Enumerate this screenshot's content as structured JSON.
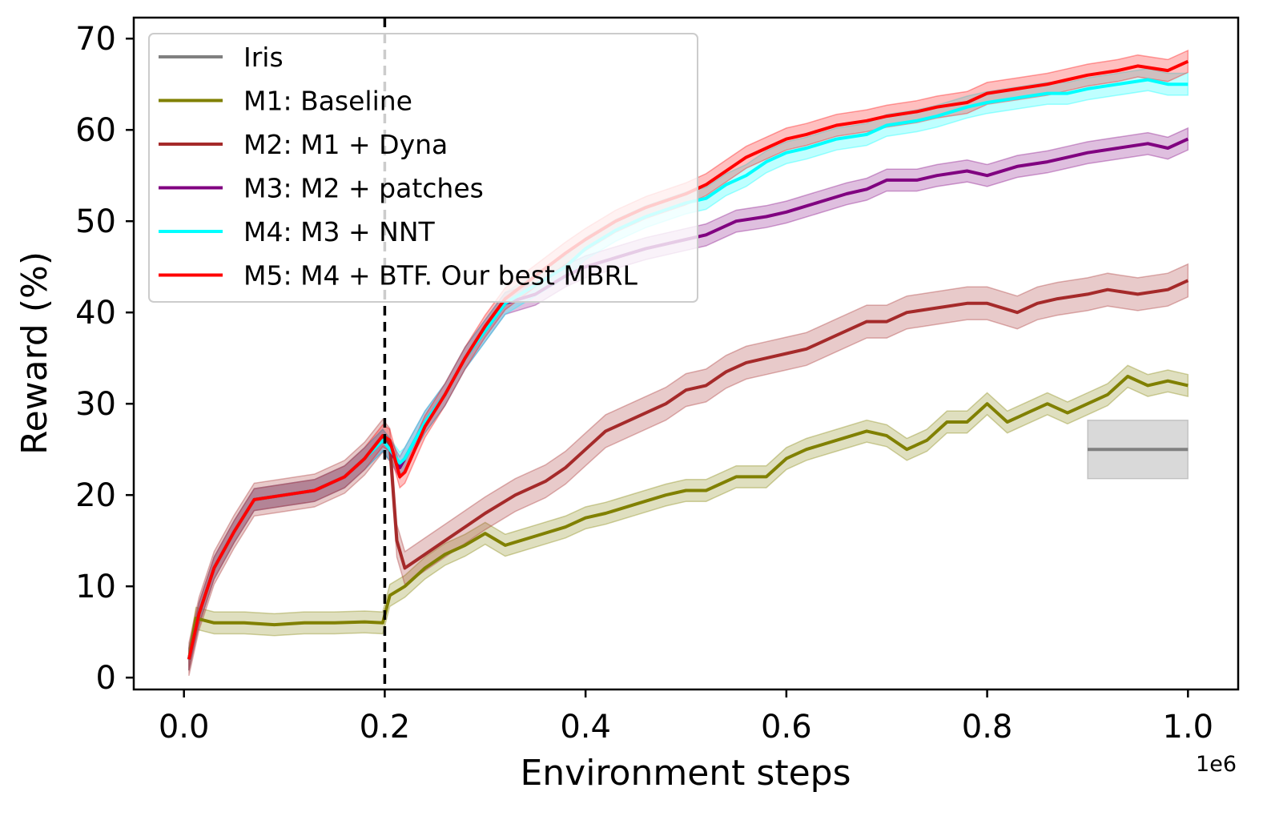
{
  "chart_data": {
    "type": "line",
    "xlabel": "Environment steps",
    "ylabel": "Reward (%)",
    "x_offset_label": "1e6",
    "xlim": [
      -0.05,
      1.05
    ],
    "ylim": [
      -1.3,
      72.3
    ],
    "x_ticks": [
      0.0,
      0.2,
      0.4,
      0.6,
      0.8,
      1.0
    ],
    "x_tick_labels": [
      "0.0",
      "0.2",
      "0.4",
      "0.6",
      "0.8",
      "1.0"
    ],
    "y_ticks": [
      0,
      10,
      20,
      30,
      40,
      50,
      60,
      70
    ],
    "y_tick_labels": [
      "0",
      "10",
      "20",
      "30",
      "40",
      "50",
      "60",
      "70"
    ],
    "vline": {
      "x": 0.2,
      "style": "dashed",
      "color": "#000000"
    },
    "grid": false,
    "legend": {
      "position": "top-left"
    },
    "series": [
      {
        "name": "Iris",
        "color": "#808080",
        "band": 3.2,
        "points": [
          [
            0.9,
            25.0
          ],
          [
            1.0,
            25.0
          ]
        ]
      },
      {
        "name": "M1: Baseline",
        "color": "#808000",
        "band": 1.2,
        "points": [
          [
            0.005,
            2.0
          ],
          [
            0.012,
            6.5
          ],
          [
            0.03,
            6.0
          ],
          [
            0.06,
            6.0
          ],
          [
            0.09,
            5.8
          ],
          [
            0.12,
            6.0
          ],
          [
            0.15,
            6.0
          ],
          [
            0.18,
            6.1
          ],
          [
            0.198,
            6.0
          ],
          [
            0.205,
            9.0
          ],
          [
            0.22,
            10.0
          ],
          [
            0.24,
            12.0
          ],
          [
            0.26,
            13.5
          ],
          [
            0.28,
            14.5
          ],
          [
            0.3,
            15.8
          ],
          [
            0.32,
            14.5
          ],
          [
            0.35,
            15.5
          ],
          [
            0.38,
            16.5
          ],
          [
            0.4,
            17.5
          ],
          [
            0.42,
            18.0
          ],
          [
            0.45,
            19.0
          ],
          [
            0.48,
            20.0
          ],
          [
            0.5,
            20.5
          ],
          [
            0.52,
            20.5
          ],
          [
            0.55,
            22.0
          ],
          [
            0.58,
            22.0
          ],
          [
            0.6,
            24.0
          ],
          [
            0.62,
            25.0
          ],
          [
            0.65,
            26.0
          ],
          [
            0.68,
            27.0
          ],
          [
            0.7,
            26.5
          ],
          [
            0.72,
            25.0
          ],
          [
            0.74,
            26.0
          ],
          [
            0.76,
            28.0
          ],
          [
            0.78,
            28.0
          ],
          [
            0.8,
            30.0
          ],
          [
            0.82,
            28.0
          ],
          [
            0.84,
            29.0
          ],
          [
            0.86,
            30.0
          ],
          [
            0.88,
            29.0
          ],
          [
            0.9,
            30.0
          ],
          [
            0.92,
            31.0
          ],
          [
            0.94,
            33.0
          ],
          [
            0.96,
            32.0
          ],
          [
            0.98,
            32.5
          ],
          [
            1.0,
            32.0
          ]
        ]
      },
      {
        "name": "M2: M1 + Dyna",
        "color": "#A52A2A",
        "band": 1.8,
        "points": [
          [
            0.005,
            2.0
          ],
          [
            0.015,
            7.0
          ],
          [
            0.03,
            12.0
          ],
          [
            0.05,
            16.0
          ],
          [
            0.07,
            19.5
          ],
          [
            0.1,
            20.0
          ],
          [
            0.13,
            20.5
          ],
          [
            0.16,
            22.0
          ],
          [
            0.18,
            24.0
          ],
          [
            0.198,
            26.5
          ],
          [
            0.205,
            25.5
          ],
          [
            0.212,
            15.0
          ],
          [
            0.22,
            12.0
          ],
          [
            0.24,
            13.5
          ],
          [
            0.26,
            15.0
          ],
          [
            0.28,
            16.5
          ],
          [
            0.3,
            18.0
          ],
          [
            0.33,
            20.0
          ],
          [
            0.36,
            21.5
          ],
          [
            0.38,
            23.0
          ],
          [
            0.4,
            25.0
          ],
          [
            0.42,
            27.0
          ],
          [
            0.45,
            28.5
          ],
          [
            0.48,
            30.0
          ],
          [
            0.5,
            31.5
          ],
          [
            0.52,
            32.0
          ],
          [
            0.54,
            33.5
          ],
          [
            0.56,
            34.5
          ],
          [
            0.58,
            35.0
          ],
          [
            0.6,
            35.5
          ],
          [
            0.62,
            36.0
          ],
          [
            0.65,
            37.5
          ],
          [
            0.68,
            39.0
          ],
          [
            0.7,
            39.0
          ],
          [
            0.72,
            40.0
          ],
          [
            0.75,
            40.5
          ],
          [
            0.78,
            41.0
          ],
          [
            0.8,
            41.0
          ],
          [
            0.83,
            40.0
          ],
          [
            0.85,
            41.0
          ],
          [
            0.87,
            41.5
          ],
          [
            0.9,
            42.0
          ],
          [
            0.92,
            42.5
          ],
          [
            0.95,
            42.0
          ],
          [
            0.98,
            42.5
          ],
          [
            1.0,
            43.5
          ]
        ]
      },
      {
        "name": "M3: M2 + patches",
        "color": "#800080",
        "band": 1.2,
        "points": [
          [
            0.005,
            2.0
          ],
          [
            0.015,
            7.0
          ],
          [
            0.03,
            12.0
          ],
          [
            0.05,
            16.0
          ],
          [
            0.07,
            19.5
          ],
          [
            0.1,
            20.0
          ],
          [
            0.13,
            20.5
          ],
          [
            0.16,
            22.0
          ],
          [
            0.18,
            24.0
          ],
          [
            0.198,
            26.0
          ],
          [
            0.205,
            25.0
          ],
          [
            0.215,
            23.0
          ],
          [
            0.22,
            24.0
          ],
          [
            0.24,
            28.0
          ],
          [
            0.26,
            31.0
          ],
          [
            0.28,
            35.0
          ],
          [
            0.3,
            38.0
          ],
          [
            0.32,
            41.0
          ],
          [
            0.35,
            42.0
          ],
          [
            0.38,
            44.0
          ],
          [
            0.4,
            45.0
          ],
          [
            0.43,
            46.0
          ],
          [
            0.46,
            47.0
          ],
          [
            0.5,
            48.0
          ],
          [
            0.52,
            48.5
          ],
          [
            0.55,
            50.0
          ],
          [
            0.58,
            50.5
          ],
          [
            0.6,
            51.0
          ],
          [
            0.63,
            52.0
          ],
          [
            0.66,
            53.0
          ],
          [
            0.68,
            53.5
          ],
          [
            0.7,
            54.5
          ],
          [
            0.73,
            54.5
          ],
          [
            0.75,
            55.0
          ],
          [
            0.78,
            55.5
          ],
          [
            0.8,
            55.0
          ],
          [
            0.83,
            56.0
          ],
          [
            0.86,
            56.5
          ],
          [
            0.88,
            57.0
          ],
          [
            0.9,
            57.5
          ],
          [
            0.93,
            58.0
          ],
          [
            0.96,
            58.5
          ],
          [
            0.98,
            58.0
          ],
          [
            1.0,
            59.0
          ]
        ]
      },
      {
        "name": "M4: M3 + NNT",
        "color": "#00FFFF",
        "band": 1.2,
        "points": [
          [
            0.005,
            2.0
          ],
          [
            0.015,
            7.0
          ],
          [
            0.03,
            12.0
          ],
          [
            0.05,
            16.0
          ],
          [
            0.07,
            19.5
          ],
          [
            0.1,
            20.0
          ],
          [
            0.13,
            20.5
          ],
          [
            0.16,
            22.0
          ],
          [
            0.18,
            24.0
          ],
          [
            0.198,
            26.0
          ],
          [
            0.205,
            25.0
          ],
          [
            0.215,
            23.5
          ],
          [
            0.22,
            24.0
          ],
          [
            0.24,
            28.0
          ],
          [
            0.26,
            31.0
          ],
          [
            0.28,
            35.0
          ],
          [
            0.3,
            38.0
          ],
          [
            0.32,
            41.0
          ],
          [
            0.35,
            43.0
          ],
          [
            0.38,
            45.0
          ],
          [
            0.4,
            47.0
          ],
          [
            0.43,
            49.0
          ],
          [
            0.46,
            50.5
          ],
          [
            0.5,
            52.0
          ],
          [
            0.52,
            52.5
          ],
          [
            0.54,
            54.0
          ],
          [
            0.56,
            55.0
          ],
          [
            0.58,
            56.5
          ],
          [
            0.6,
            57.5
          ],
          [
            0.62,
            58.0
          ],
          [
            0.65,
            59.0
          ],
          [
            0.68,
            59.5
          ],
          [
            0.7,
            60.5
          ],
          [
            0.73,
            61.0
          ],
          [
            0.75,
            61.5
          ],
          [
            0.78,
            62.5
          ],
          [
            0.8,
            63.0
          ],
          [
            0.83,
            63.5
          ],
          [
            0.86,
            64.0
          ],
          [
            0.88,
            64.0
          ],
          [
            0.9,
            64.5
          ],
          [
            0.93,
            65.0
          ],
          [
            0.96,
            65.5
          ],
          [
            0.98,
            65.0
          ],
          [
            1.0,
            65.0
          ]
        ]
      },
      {
        "name": "M5: M4 + BTF. Our best MBRL",
        "color": "#FF0000",
        "band": 1.2,
        "points": [
          [
            0.005,
            2.0
          ],
          [
            0.015,
            7.0
          ],
          [
            0.03,
            12.0
          ],
          [
            0.05,
            16.0
          ],
          [
            0.07,
            19.5
          ],
          [
            0.1,
            20.0
          ],
          [
            0.13,
            20.5
          ],
          [
            0.16,
            22.0
          ],
          [
            0.18,
            24.0
          ],
          [
            0.198,
            26.5
          ],
          [
            0.205,
            26.0
          ],
          [
            0.215,
            22.0
          ],
          [
            0.22,
            22.5
          ],
          [
            0.24,
            27.5
          ],
          [
            0.26,
            31.0
          ],
          [
            0.28,
            35.0
          ],
          [
            0.3,
            38.5
          ],
          [
            0.32,
            41.5
          ],
          [
            0.35,
            44.0
          ],
          [
            0.38,
            46.5
          ],
          [
            0.4,
            48.0
          ],
          [
            0.43,
            50.0
          ],
          [
            0.46,
            51.5
          ],
          [
            0.5,
            53.0
          ],
          [
            0.52,
            54.0
          ],
          [
            0.54,
            55.5
          ],
          [
            0.56,
            57.0
          ],
          [
            0.58,
            58.0
          ],
          [
            0.6,
            59.0
          ],
          [
            0.62,
            59.5
          ],
          [
            0.65,
            60.5
          ],
          [
            0.68,
            61.0
          ],
          [
            0.7,
            61.5
          ],
          [
            0.73,
            62.0
          ],
          [
            0.75,
            62.5
          ],
          [
            0.78,
            63.0
          ],
          [
            0.8,
            64.0
          ],
          [
            0.83,
            64.5
          ],
          [
            0.86,
            65.0
          ],
          [
            0.88,
            65.5
          ],
          [
            0.9,
            66.0
          ],
          [
            0.93,
            66.5
          ],
          [
            0.95,
            67.0
          ],
          [
            0.98,
            66.5
          ],
          [
            1.0,
            67.5
          ]
        ]
      }
    ]
  }
}
